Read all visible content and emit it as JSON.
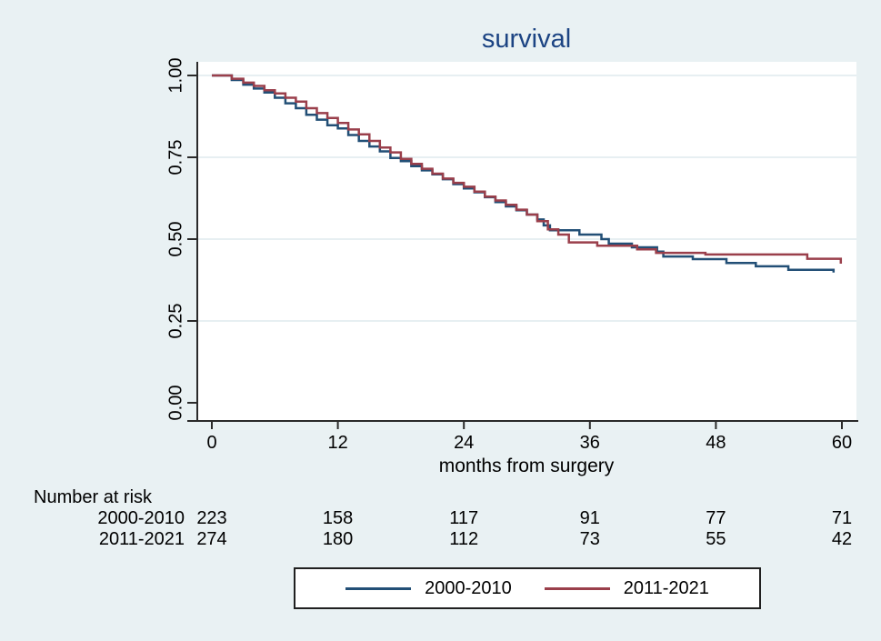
{
  "figure": {
    "background": "#e9f1f3",
    "plot_background": "#ffffff",
    "grid_color": "#dfeaee",
    "axis_color": "#2a2a2a",
    "title_color": "#1c4483",
    "text_color": "#000000"
  },
  "chart_data": {
    "type": "line",
    "subtype": "kaplan-meier-step",
    "title": "survival",
    "xlabel": "months from surgery",
    "ylabel": "",
    "xlim": [
      0,
      60
    ],
    "ylim": [
      0,
      1
    ],
    "x_ticks": [
      0,
      12,
      24,
      36,
      48,
      60
    ],
    "y_ticks": [
      "0.00",
      "0.25",
      "0.50",
      "0.75",
      "1.00"
    ],
    "grid": "horizontal",
    "legend_position": "bottom",
    "series": [
      {
        "name": "2000-2010",
        "color": "#224f76",
        "points": [
          [
            0,
            1.0
          ],
          [
            1.9,
            0.986
          ],
          [
            3,
            0.972
          ],
          [
            4,
            0.96
          ],
          [
            5,
            0.948
          ],
          [
            6,
            0.932
          ],
          [
            7,
            0.915
          ],
          [
            8,
            0.9
          ],
          [
            9,
            0.88
          ],
          [
            10,
            0.865
          ],
          [
            11,
            0.848
          ],
          [
            12,
            0.838
          ],
          [
            13,
            0.818
          ],
          [
            14,
            0.8
          ],
          [
            15,
            0.783
          ],
          [
            16,
            0.768
          ],
          [
            17,
            0.748
          ],
          [
            18,
            0.738
          ],
          [
            19,
            0.723
          ],
          [
            20,
            0.71
          ],
          [
            21,
            0.698
          ],
          [
            22,
            0.683
          ],
          [
            23,
            0.668
          ],
          [
            24,
            0.655
          ],
          [
            25,
            0.643
          ],
          [
            26,
            0.628
          ],
          [
            27,
            0.613
          ],
          [
            28,
            0.6
          ],
          [
            29,
            0.588
          ],
          [
            30,
            0.575
          ],
          [
            31,
            0.56
          ],
          [
            31.6,
            0.542
          ],
          [
            32.2,
            0.527
          ],
          [
            35,
            0.514
          ],
          [
            37.1,
            0.5
          ],
          [
            37.8,
            0.486
          ],
          [
            40,
            0.475
          ],
          [
            42.4,
            0.462
          ],
          [
            43,
            0.447
          ],
          [
            45.8,
            0.439
          ],
          [
            49,
            0.427
          ],
          [
            51.8,
            0.417
          ],
          [
            54.9,
            0.406
          ],
          [
            59.2,
            0.398
          ]
        ]
      },
      {
        "name": "2011-2021",
        "color": "#9a3f4b",
        "points": [
          [
            0,
            1.0
          ],
          [
            1.9,
            0.99
          ],
          [
            3,
            0.978
          ],
          [
            4,
            0.968
          ],
          [
            5,
            0.955
          ],
          [
            6,
            0.945
          ],
          [
            7,
            0.932
          ],
          [
            8,
            0.92
          ],
          [
            9,
            0.9
          ],
          [
            10,
            0.885
          ],
          [
            11,
            0.87
          ],
          [
            12,
            0.855
          ],
          [
            13,
            0.835
          ],
          [
            14,
            0.82
          ],
          [
            15,
            0.8
          ],
          [
            16,
            0.78
          ],
          [
            17,
            0.765
          ],
          [
            18,
            0.745
          ],
          [
            19,
            0.73
          ],
          [
            20,
            0.715
          ],
          [
            21,
            0.7
          ],
          [
            22,
            0.685
          ],
          [
            23,
            0.672
          ],
          [
            24,
            0.66
          ],
          [
            25,
            0.645
          ],
          [
            26,
            0.63
          ],
          [
            27,
            0.618
          ],
          [
            28,
            0.605
          ],
          [
            29,
            0.59
          ],
          [
            30,
            0.575
          ],
          [
            31,
            0.555
          ],
          [
            32,
            0.53
          ],
          [
            33,
            0.514
          ],
          [
            34,
            0.49
          ],
          [
            36.7,
            0.48
          ],
          [
            40.5,
            0.469
          ],
          [
            42.3,
            0.458
          ],
          [
            47,
            0.453
          ],
          [
            56.7,
            0.44
          ],
          [
            59.9,
            0.425
          ]
        ]
      }
    ],
    "risk_table": {
      "header": "Number at risk",
      "times": [
        0,
        12,
        24,
        36,
        48,
        60
      ],
      "rows": [
        {
          "label": "2000-2010",
          "counts": [
            223,
            158,
            117,
            91,
            77,
            71
          ]
        },
        {
          "label": "2011-2021",
          "counts": [
            274,
            180,
            112,
            73,
            55,
            42
          ]
        }
      ]
    }
  }
}
